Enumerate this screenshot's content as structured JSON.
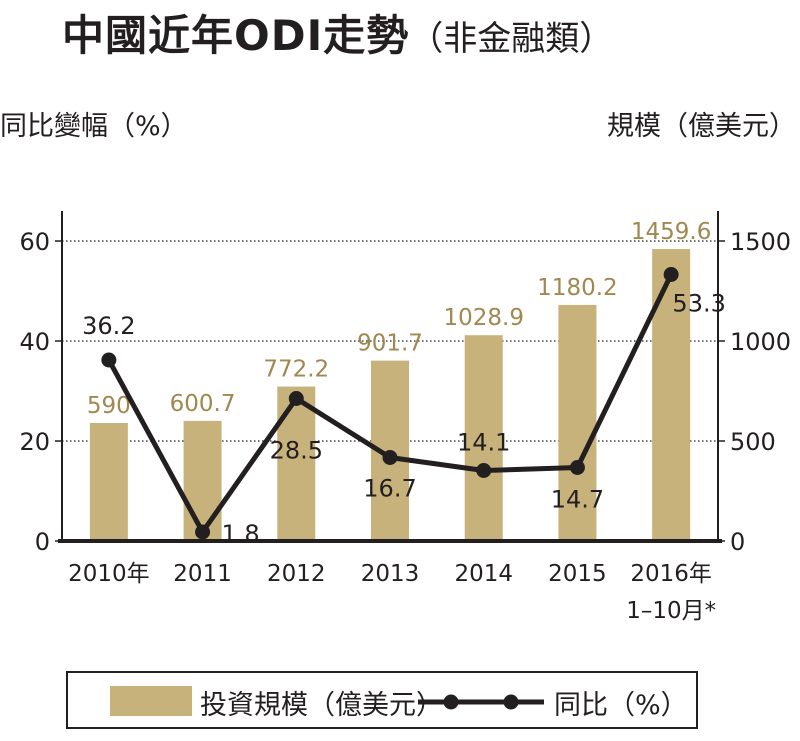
{
  "title": {
    "main": "中國近年ODI走勢",
    "sub": "（非金融類）"
  },
  "chart_data": {
    "type": "bar+line",
    "categories": [
      "2010年",
      "2011",
      "2012",
      "2013",
      "2014",
      "2015",
      "2016年\n1–10月*"
    ],
    "series": [
      {
        "name": "投資規模（億美元）",
        "type": "bar",
        "axis": "right",
        "values": [
          590,
          600.7,
          772.2,
          901.7,
          1028.9,
          1180.2,
          1459.6
        ],
        "labels": [
          "590",
          "600.7",
          "772.2",
          "901.7",
          "1028.9",
          "1180.2",
          "1459.6"
        ],
        "color": "#c8b27c",
        "label_color": "#a08850"
      },
      {
        "name": "同比（%）",
        "type": "line",
        "axis": "left",
        "values": [
          36.2,
          1.8,
          28.5,
          16.7,
          14.1,
          14.7,
          53.3
        ],
        "labels": [
          "36.2",
          "1.8",
          "28.5",
          "16.7",
          "14.1",
          "14.7",
          "53.3"
        ],
        "color": "#231f20"
      }
    ],
    "ylabel_left": "同比變幅（%）",
    "ylabel_right": "規模（億美元）",
    "ylim_left": [
      0,
      60
    ],
    "ylim_right": [
      0,
      1500
    ],
    "yticks_left": [
      "0",
      "20",
      "40",
      "60"
    ],
    "yticks_right": [
      "0",
      "500",
      "1000",
      "1500"
    ],
    "grid": "dotted horizontal",
    "legend": "bottom"
  }
}
